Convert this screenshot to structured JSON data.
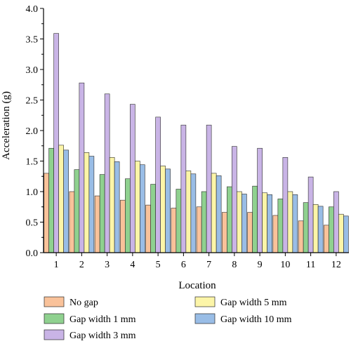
{
  "chart_data": {
    "type": "bar",
    "title": "",
    "xlabel": "Location",
    "ylabel": "Acceleration (g)",
    "ylim": [
      0,
      4.0
    ],
    "yticks": [
      "0.0",
      "0.5",
      "1.0",
      "1.5",
      "2.0",
      "2.5",
      "3.0",
      "3.5",
      "4.0"
    ],
    "categories": [
      "1",
      "2",
      "3",
      "4",
      "5",
      "6",
      "7",
      "8",
      "9",
      "10",
      "11",
      "12"
    ],
    "grid": false,
    "legend_position": "bottom",
    "series": [
      {
        "name": "No gap",
        "color": "#f9c29a",
        "values": [
          1.3,
          1.0,
          0.93,
          0.86,
          0.78,
          0.73,
          0.75,
          0.66,
          0.66,
          0.61,
          0.52,
          0.45
        ]
      },
      {
        "name": "Gap width 1 mm",
        "color": "#8fd18f",
        "values": [
          1.71,
          1.36,
          1.28,
          1.21,
          1.12,
          1.04,
          1.0,
          1.08,
          1.09,
          0.88,
          0.82,
          0.75
        ]
      },
      {
        "name": "Gap width 3 mm",
        "color": "#c9b4e6",
        "values": [
          3.59,
          2.78,
          2.6,
          2.43,
          2.22,
          2.09,
          2.09,
          1.74,
          1.71,
          1.56,
          1.24,
          1.0
        ]
      },
      {
        "name": "Gap width 5 mm",
        "color": "#fcf5a8",
        "values": [
          1.76,
          1.64,
          1.56,
          1.5,
          1.42,
          1.34,
          1.3,
          1.0,
          0.98,
          1.0,
          0.79,
          0.63
        ]
      },
      {
        "name": "Gap width 10 mm",
        "color": "#99bde6",
        "values": [
          1.68,
          1.58,
          1.49,
          1.44,
          1.37,
          1.29,
          1.26,
          0.96,
          0.95,
          0.95,
          0.76,
          0.6
        ]
      }
    ],
    "legend_layout": [
      {
        "series": 0,
        "column": 0,
        "row": 0
      },
      {
        "series": 1,
        "column": 0,
        "row": 1
      },
      {
        "series": 2,
        "column": 0,
        "row": 2
      },
      {
        "series": 3,
        "column": 1,
        "row": 0
      },
      {
        "series": 4,
        "column": 1,
        "row": 1
      }
    ]
  }
}
